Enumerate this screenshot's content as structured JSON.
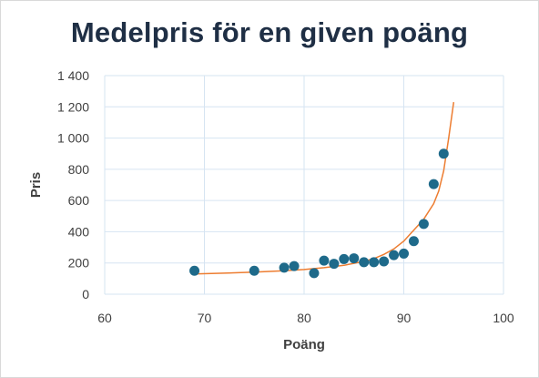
{
  "chart_data": {
    "type": "scatter",
    "title": "Medelpris för en given poäng",
    "xlabel": "Poäng",
    "ylabel": "Pris",
    "xlim": [
      60,
      100
    ],
    "ylim": [
      0,
      1400
    ],
    "x_ticks": [
      60,
      70,
      80,
      90,
      100
    ],
    "x_tick_labels": [
      "60",
      "70",
      "80",
      "90",
      "100"
    ],
    "y_ticks": [
      0,
      200,
      400,
      600,
      800,
      1000,
      1200,
      1400
    ],
    "y_tick_labels": [
      "0",
      "200",
      "400",
      "600",
      "800",
      "1 000",
      "1 200",
      "1 400"
    ],
    "grid": true,
    "points": [
      {
        "x": 69,
        "y": 150
      },
      {
        "x": 75,
        "y": 150
      },
      {
        "x": 78,
        "y": 170
      },
      {
        "x": 79,
        "y": 180
      },
      {
        "x": 81,
        "y": 135
      },
      {
        "x": 82,
        "y": 215
      },
      {
        "x": 83,
        "y": 195
      },
      {
        "x": 84,
        "y": 225
      },
      {
        "x": 85,
        "y": 230
      },
      {
        "x": 86,
        "y": 205
      },
      {
        "x": 87,
        "y": 205
      },
      {
        "x": 88,
        "y": 210
      },
      {
        "x": 89,
        "y": 250
      },
      {
        "x": 90,
        "y": 260
      },
      {
        "x": 91,
        "y": 340
      },
      {
        "x": 92,
        "y": 450
      },
      {
        "x": 93,
        "y": 705
      },
      {
        "x": 94,
        "y": 900
      }
    ],
    "trendline": [
      {
        "x": 69,
        "y": 130
      },
      {
        "x": 72,
        "y": 135
      },
      {
        "x": 75,
        "y": 142
      },
      {
        "x": 78,
        "y": 150
      },
      {
        "x": 80,
        "y": 158
      },
      {
        "x": 82,
        "y": 170
      },
      {
        "x": 84,
        "y": 185
      },
      {
        "x": 86,
        "y": 210
      },
      {
        "x": 87,
        "y": 228
      },
      {
        "x": 88,
        "y": 255
      },
      {
        "x": 89,
        "y": 290
      },
      {
        "x": 90,
        "y": 340
      },
      {
        "x": 91,
        "y": 410
      },
      {
        "x": 92,
        "y": 480
      },
      {
        "x": 93,
        "y": 580
      },
      {
        "x": 93.5,
        "y": 660
      },
      {
        "x": 94,
        "y": 790
      },
      {
        "x": 94.5,
        "y": 1000
      },
      {
        "x": 95,
        "y": 1230
      }
    ],
    "colors": {
      "points": "#1e6a8a",
      "trendline": "#ed7d31",
      "grid": "#d6e4f2",
      "title": "#1f2f45"
    }
  }
}
